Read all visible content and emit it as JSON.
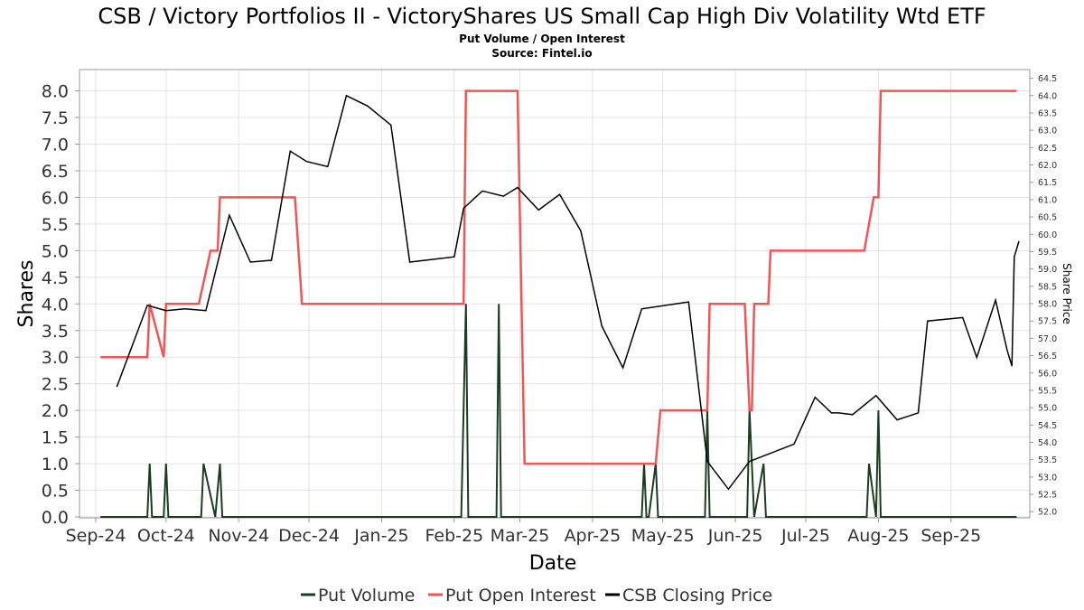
{
  "chart_data": {
    "type": "line",
    "title": "CSB / Victory Portfolios II - VictoryShares US Small Cap High Div Volatility Wtd ETF",
    "subtitle": "Put Volume / Open Interest",
    "source": "Source: Fintel.io",
    "xlabel": "Date",
    "ylabel": "Shares",
    "y2label": "Share Price",
    "x_ticks": [
      "Sep-24",
      "Oct-24",
      "Nov-24",
      "Dec-24",
      "Jan-25",
      "Feb-25",
      "Mar-25",
      "Apr-25",
      "May-25",
      "Jun-25",
      "Jul-25",
      "Aug-25",
      "Sep-25"
    ],
    "y_ticks": [
      "0.0",
      "0.5",
      "1.0",
      "1.5",
      "2.0",
      "2.5",
      "3.0",
      "3.5",
      "4.0",
      "4.5",
      "5.0",
      "5.5",
      "6.0",
      "6.5",
      "7.0",
      "7.5",
      "8.0"
    ],
    "y2_ticks": [
      "52.0",
      "52.5",
      "53.0",
      "53.5",
      "54.0",
      "54.5",
      "55.0",
      "55.5",
      "56.0",
      "56.5",
      "57.0",
      "57.5",
      "58.0",
      "58.5",
      "59.0",
      "59.5",
      "60.0",
      "60.5",
      "61.0",
      "61.5",
      "62.0",
      "62.5",
      "63.0",
      "63.5",
      "64.0",
      "64.5"
    ],
    "x_domain": [
      "2024-09-01",
      "2025-09-30"
    ],
    "ylim": [
      0,
      8.4
    ],
    "y2lim": [
      51.85,
      64.75
    ],
    "grid": true,
    "legend_position": "bottom",
    "colors": {
      "put_volume": "#1b3d1f",
      "put_open_interest": "#f25555",
      "closing_price": "#000000",
      "grid": "#e3e3e3",
      "frame": "#999999"
    },
    "series": [
      {
        "name": "Put Volume",
        "axis": "left",
        "points": [
          [
            "2024-09-03",
            0
          ],
          [
            "2024-09-23",
            0
          ],
          [
            "2024-09-24",
            1
          ],
          [
            "2024-09-25",
            0
          ],
          [
            "2024-09-30",
            0
          ],
          [
            "2024-10-01",
            1
          ],
          [
            "2024-10-02",
            0
          ],
          [
            "2024-10-16",
            0
          ],
          [
            "2024-10-17",
            1
          ],
          [
            "2024-10-22",
            0
          ],
          [
            "2024-10-24",
            1
          ],
          [
            "2024-10-25",
            0
          ],
          [
            "2025-02-04",
            0
          ],
          [
            "2025-02-06",
            4
          ],
          [
            "2025-02-07",
            0
          ],
          [
            "2025-02-19",
            0
          ],
          [
            "2025-02-20",
            4
          ],
          [
            "2025-02-21",
            0
          ],
          [
            "2025-04-22",
            0
          ],
          [
            "2025-04-23",
            1
          ],
          [
            "2025-04-24",
            0
          ],
          [
            "2025-04-25",
            0
          ],
          [
            "2025-04-28",
            1
          ],
          [
            "2025-04-29",
            0
          ],
          [
            "2025-05-19",
            0
          ],
          [
            "2025-05-20",
            2
          ],
          [
            "2025-05-21",
            0
          ],
          [
            "2025-06-06",
            0
          ],
          [
            "2025-06-07",
            2
          ],
          [
            "2025-06-09",
            0
          ],
          [
            "2025-06-13",
            1
          ],
          [
            "2025-06-14",
            0
          ],
          [
            "2025-07-27",
            0
          ],
          [
            "2025-07-28",
            1
          ],
          [
            "2025-07-31",
            0
          ],
          [
            "2025-08-01",
            2
          ],
          [
            "2025-08-02",
            0
          ],
          [
            "2025-09-29",
            0
          ]
        ]
      },
      {
        "name": "Put Open Interest",
        "axis": "left",
        "points": [
          [
            "2024-09-03",
            3
          ],
          [
            "2024-09-22",
            3
          ],
          [
            "2024-09-23",
            3
          ],
          [
            "2024-09-24",
            4
          ],
          [
            "2024-09-30",
            3
          ],
          [
            "2024-10-01",
            4
          ],
          [
            "2024-10-15",
            4
          ],
          [
            "2024-10-20",
            5
          ],
          [
            "2024-10-23",
            5
          ],
          [
            "2024-10-24",
            6
          ],
          [
            "2024-11-25",
            6
          ],
          [
            "2024-11-28",
            4
          ],
          [
            "2025-02-05",
            4
          ],
          [
            "2025-02-06",
            8
          ],
          [
            "2025-02-28",
            8
          ],
          [
            "2025-03-03",
            1
          ],
          [
            "2025-04-28",
            1
          ],
          [
            "2025-04-30",
            2
          ],
          [
            "2025-05-20",
            2
          ],
          [
            "2025-05-21",
            4
          ],
          [
            "2025-06-05",
            4
          ],
          [
            "2025-06-07",
            2
          ],
          [
            "2025-06-08",
            2
          ],
          [
            "2025-06-09",
            4
          ],
          [
            "2025-06-15",
            4
          ],
          [
            "2025-06-16",
            5
          ],
          [
            "2025-07-26",
            5
          ],
          [
            "2025-07-30",
            6
          ],
          [
            "2025-08-01",
            6
          ],
          [
            "2025-08-02",
            8
          ],
          [
            "2025-09-29",
            8
          ]
        ]
      },
      {
        "name": "CSB Closing Price",
        "axis": "right",
        "points": [
          [
            "2024-09-10",
            55.6
          ],
          [
            "2024-09-23",
            57.95
          ],
          [
            "2024-10-01",
            57.8
          ],
          [
            "2024-10-09",
            57.85
          ],
          [
            "2024-10-18",
            57.8
          ],
          [
            "2024-10-28",
            60.55
          ],
          [
            "2024-11-06",
            59.2
          ],
          [
            "2024-11-15",
            59.25
          ],
          [
            "2024-11-23",
            62.4
          ],
          [
            "2024-11-30",
            62.1
          ],
          [
            "2024-12-09",
            61.95
          ],
          [
            "2024-12-17",
            64.0
          ],
          [
            "2024-12-26",
            63.7
          ],
          [
            "2025-01-05",
            63.15
          ],
          [
            "2025-01-13",
            59.2
          ],
          [
            "2025-02-01",
            59.35
          ],
          [
            "2025-02-05",
            60.75
          ],
          [
            "2025-02-13",
            61.25
          ],
          [
            "2025-02-22",
            61.1
          ],
          [
            "2025-02-28",
            61.35
          ],
          [
            "2025-03-09",
            60.7
          ],
          [
            "2025-03-18",
            61.15
          ],
          [
            "2025-03-27",
            60.1
          ],
          [
            "2025-04-05",
            57.35
          ],
          [
            "2025-04-14",
            56.15
          ],
          [
            "2025-04-22",
            57.85
          ],
          [
            "2025-05-12",
            58.05
          ],
          [
            "2025-05-20",
            53.45
          ],
          [
            "2025-05-29",
            52.65
          ],
          [
            "2025-06-07",
            53.45
          ],
          [
            "2025-06-26",
            53.95
          ],
          [
            "2025-07-05",
            55.3
          ],
          [
            "2025-07-12",
            54.85
          ],
          [
            "2025-07-15",
            54.85
          ],
          [
            "2025-07-21",
            54.8
          ],
          [
            "2025-07-31",
            55.35
          ],
          [
            "2025-08-09",
            54.65
          ],
          [
            "2025-08-18",
            54.85
          ],
          [
            "2025-08-22",
            57.5
          ],
          [
            "2025-09-06",
            57.6
          ],
          [
            "2025-09-12",
            56.45
          ],
          [
            "2025-09-20",
            58.1
          ],
          [
            "2025-09-25",
            56.65
          ],
          [
            "2025-09-27",
            56.2
          ],
          [
            "2025-09-28",
            59.35
          ],
          [
            "2025-09-30",
            59.8
          ]
        ]
      }
    ]
  },
  "legend": {
    "items": [
      {
        "label": "Put Volume",
        "color": "#1b3d1f"
      },
      {
        "label": "Put Open Interest",
        "color": "#f25555"
      },
      {
        "label": "CSB Closing Price",
        "color": "#000000"
      }
    ]
  }
}
